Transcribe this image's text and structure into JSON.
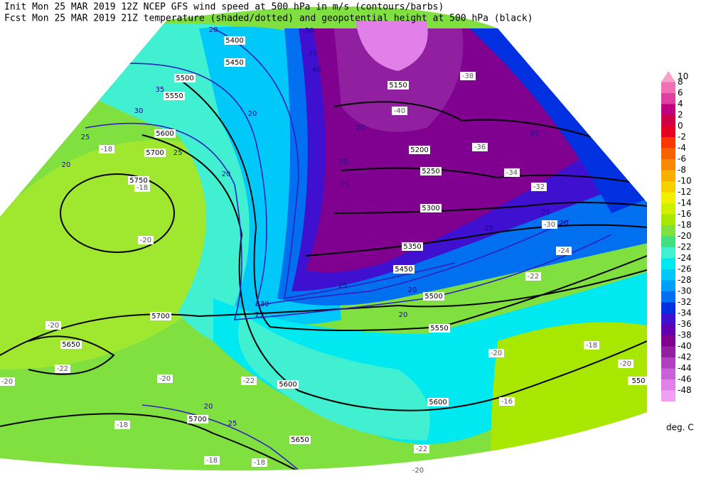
{
  "header": {
    "line1": "Init  Mon 25 MAR 2019 12Z  NCEP GFS wind speed at 500 hPa in m/s (contours/barbs)",
    "line2": "Fcst Mon 25 MAR 2019 21Z  temperature (shaded/dotted) and geopotential height at 500 hPa (black)"
  },
  "legend": {
    "unit": "deg. C",
    "levels": [
      {
        "label": "10",
        "color": "#f8a0c8"
      },
      {
        "label": "8",
        "color": "#f070b8"
      },
      {
        "label": "6",
        "color": "#e040a0"
      },
      {
        "label": "4",
        "color": "#c00080"
      },
      {
        "label": "2",
        "color": "#d00048"
      },
      {
        "label": "0",
        "color": "#e80020"
      },
      {
        "label": "-2",
        "color": "#f83800"
      },
      {
        "label": "-4",
        "color": "#f86000"
      },
      {
        "label": "-6",
        "color": "#f88800"
      },
      {
        "label": "-8",
        "color": "#f8b000"
      },
      {
        "label": "-10",
        "color": "#f8d000"
      },
      {
        "label": "-12",
        "color": "#f0f000"
      },
      {
        "label": "-14",
        "color": "#d0f000"
      },
      {
        "label": "-16",
        "color": "#a8e800"
      },
      {
        "label": "-18",
        "color": "#80e040"
      },
      {
        "label": "-20",
        "color": "#40e080"
      },
      {
        "label": "-22",
        "color": "#40f0d0"
      },
      {
        "label": "-24",
        "color": "#00e8f0"
      },
      {
        "label": "-26",
        "color": "#00c8f8"
      },
      {
        "label": "-28",
        "color": "#00a0f8"
      },
      {
        "label": "-30",
        "color": "#0070f0"
      },
      {
        "label": "-32",
        "color": "#0030e0"
      },
      {
        "label": "-34",
        "color": "#4010d0"
      },
      {
        "label": "-36",
        "color": "#6000b0"
      },
      {
        "label": "-38",
        "color": "#800090"
      },
      {
        "label": "-40",
        "color": "#9020a0"
      },
      {
        "label": "-42",
        "color": "#b040c0"
      },
      {
        "label": "-44",
        "color": "#c860d8"
      },
      {
        "label": "-46",
        "color": "#e080e8"
      },
      {
        "label": "-48",
        "color": "#f0a0f0"
      }
    ]
  },
  "map": {
    "height_labels": [
      "5400",
      "5450",
      "5500",
      "5550",
      "5600",
      "5700",
      "5750",
      "5700",
      "5650",
      "5600",
      "5700",
      "5650",
      "5600",
      "5550",
      "5500",
      "5450",
      "5350",
      "5300",
      "5250",
      "5200",
      "5150",
      "550"
    ],
    "temperature_labels": [
      "-18",
      "-20",
      "-20",
      "-22",
      "-20",
      "-20",
      "-22",
      "-18",
      "-18",
      "-18",
      "-22",
      "-20",
      "-20",
      "-18",
      "-20",
      "-22",
      "-24",
      "-40",
      "-38",
      "-36",
      "-34",
      "-32",
      "-30",
      "-16",
      "-18"
    ],
    "wind_labels": [
      "20",
      "35",
      "30",
      "25",
      "25",
      "20",
      "20",
      "20",
      "35",
      "40",
      "30",
      "20",
      "30",
      "25",
      "20",
      "25",
      "20",
      "25",
      "25",
      "20",
      "20",
      "30",
      "25",
      "20",
      "25"
    ]
  }
}
